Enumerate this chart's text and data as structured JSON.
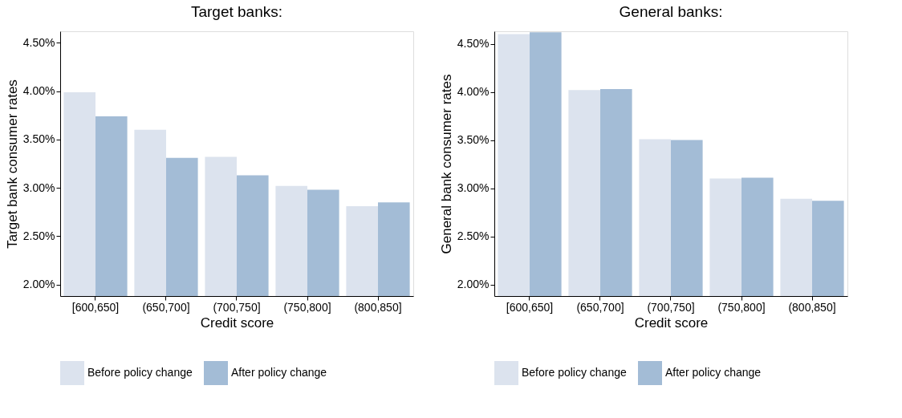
{
  "chart_data": [
    {
      "type": "bar",
      "title": "Target banks:",
      "xlabel": "Credit score",
      "ylabel": "Target bank consumer rates",
      "categories": [
        "[600,650]",
        "(650,700]",
        "(700,750]",
        "(750,800]",
        "(800,850]"
      ],
      "series": [
        {
          "name": "Before policy change",
          "color": "#dce3ee",
          "values": [
            3.99,
            3.6,
            3.32,
            3.02,
            2.81
          ]
        },
        {
          "name": "After policy change",
          "color": "#a3bcd6",
          "values": [
            3.74,
            3.31,
            3.13,
            2.98,
            2.85
          ]
        }
      ],
      "ylim": [
        1.88,
        4.62
      ],
      "yticks": [
        {
          "value": 2,
          "label": "2.00%"
        },
        {
          "value": 2.5,
          "label": "2.50%"
        },
        {
          "value": 3,
          "label": "3.00%"
        },
        {
          "value": 3.5,
          "label": "3.50%"
        },
        {
          "value": 4,
          "label": "4.00%"
        },
        {
          "value": 4.5,
          "label": "4.50%"
        }
      ],
      "legend": "bottom"
    },
    {
      "type": "bar",
      "title": "General banks:",
      "xlabel": "Credit score",
      "ylabel": "General bank consumer rates",
      "categories": [
        "[600,650]",
        "(650,700]",
        "(700,750]",
        "(750,800]",
        "(800,850]"
      ],
      "series": [
        {
          "name": "Before policy change",
          "color": "#dce3ee",
          "values": [
            4.6,
            4.02,
            3.51,
            3.1,
            2.89
          ]
        },
        {
          "name": "After policy change",
          "color": "#a3bcd6",
          "values": [
            4.62,
            4.03,
            3.5,
            3.11,
            2.87
          ]
        }
      ],
      "ylim": [
        1.88,
        4.63
      ],
      "yticks": [
        {
          "value": 2,
          "label": "2.00%"
        },
        {
          "value": 2.5,
          "label": "2.50%"
        },
        {
          "value": 3,
          "label": "3.00%"
        },
        {
          "value": 3.5,
          "label": "3.50%"
        },
        {
          "value": 4,
          "label": "4.00%"
        },
        {
          "value": 4.5,
          "label": "4.50%"
        }
      ],
      "legend": "bottom"
    }
  ]
}
